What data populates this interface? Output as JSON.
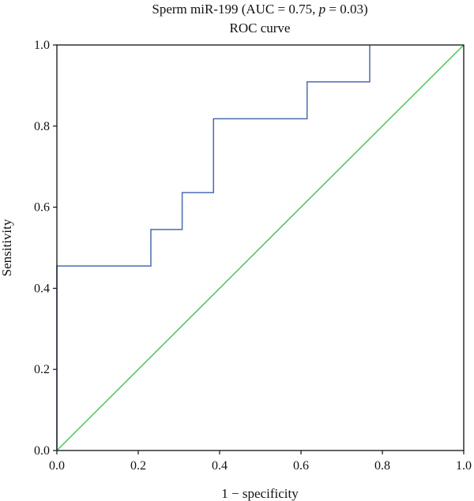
{
  "chart_data": {
    "type": "line",
    "title_prefix": "Sperm miR-199 (AUC = 0.75, ",
    "title_p": "p",
    "title_suffix": " = 0.03)",
    "subtitle": "ROC curve",
    "xlabel": "1 − specificity",
    "ylabel": "Sensitivity",
    "xlim": [
      0,
      1
    ],
    "ylim": [
      0,
      1
    ],
    "x_ticks": [
      "0.0",
      "0.2",
      "0.4",
      "0.6",
      "0.8",
      "1.0"
    ],
    "y_ticks": [
      "0.0",
      "0.2",
      "0.4",
      "0.6",
      "0.8",
      "1.0"
    ],
    "grid": false,
    "series": [
      {
        "color": "#4a6bb0",
        "style": "step",
        "x": [
          0,
          0,
          0.231,
          0.231,
          0.308,
          0.308,
          0.385,
          0.385,
          0.615,
          0.615,
          0.769,
          0.769
        ],
        "y": [
          0,
          0.455,
          0.455,
          0.545,
          0.545,
          0.636,
          0.636,
          0.818,
          0.818,
          0.909,
          0.909,
          1.0
        ]
      },
      {
        "color": "#4cc35a",
        "style": "reference",
        "x": [
          0,
          1
        ],
        "y": [
          0,
          1
        ]
      }
    ]
  }
}
